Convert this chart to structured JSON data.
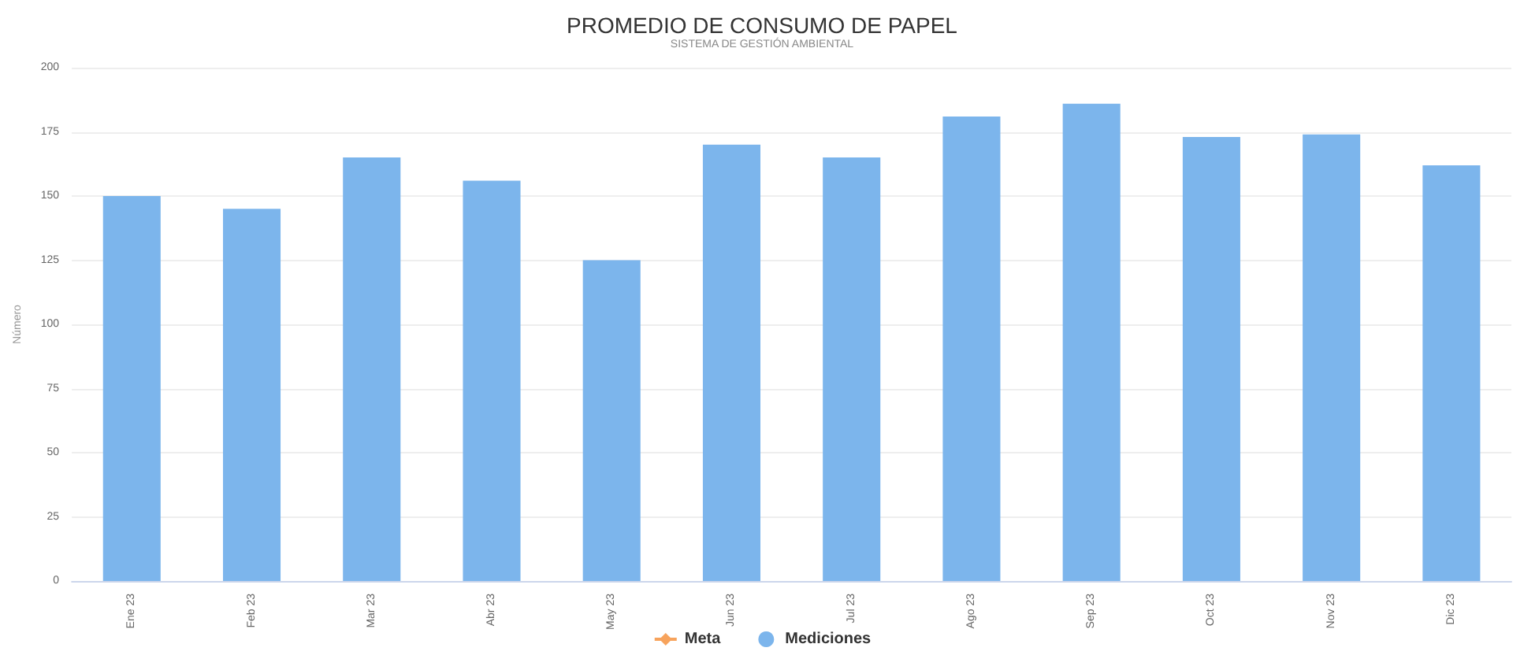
{
  "chart_data": {
    "type": "bar",
    "title": "PROMEDIO DE CONSUMO DE PAPEL",
    "subtitle": "SISTEMA DE GESTIÓN AMBIENTAL",
    "ylabel": "Número",
    "categories": [
      "Ene 23",
      "Feb 23",
      "Mar 23",
      "Abr 23",
      "May 23",
      "Jun 23",
      "Jul 23",
      "Ago 23",
      "Sep 23",
      "Oct 23",
      "Nov 23",
      "Dic 23"
    ],
    "series": [
      {
        "name": "Meta",
        "type": "line",
        "color": "#f7a35c",
        "values": [
          null,
          null,
          null,
          null,
          null,
          null,
          null,
          null,
          null,
          null,
          null,
          null
        ]
      },
      {
        "name": "Mediciones",
        "color": "#7cb5ec",
        "values": [
          150,
          145,
          165,
          156,
          125,
          170,
          165,
          181,
          186,
          173,
          174,
          162
        ]
      }
    ],
    "ylim": [
      0,
      200
    ],
    "yticks": [
      0,
      25,
      50,
      75,
      100,
      125,
      150,
      175,
      200
    ],
    "grid": "y",
    "legend": "bottom"
  }
}
